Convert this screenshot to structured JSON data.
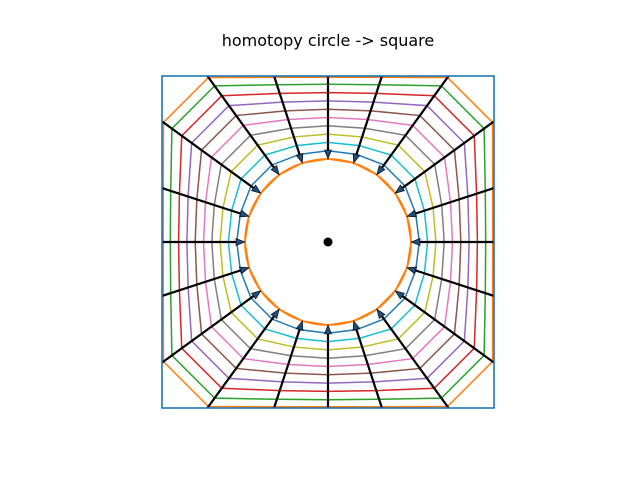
{
  "chart_data": {
    "type": "line",
    "title": "homotopy circle -> square",
    "xlabel": "",
    "ylabel": "",
    "xlim": [
      -1.0,
      1.0
    ],
    "ylim": [
      -1.0,
      1.0
    ],
    "axes_visible": false,
    "aspect": "equal",
    "grid": false,
    "center_point": {
      "x": 0,
      "y": 0
    },
    "circle_radius": 0.5,
    "interpolation_t": [
      0.0,
      0.1,
      0.2,
      0.3,
      0.4,
      0.5,
      0.6,
      0.7,
      0.8,
      0.9,
      1.0
    ],
    "series_colors": [
      "#ff7f0e",
      "#1f77b4",
      "#17becf",
      "#bcbd22",
      "#7f7f7f",
      "#e377c2",
      "#8c564b",
      "#9467bd",
      "#d62728",
      "#2ca02c",
      "#ff7f0e"
    ],
    "square_color": "#1f77b4",
    "ray_color": "#000000",
    "arrow_color": "#1f4e79",
    "ray_count": 20,
    "ray_angles_deg": [
      0,
      18,
      36,
      54,
      72,
      90,
      108,
      126,
      144,
      162,
      180,
      198,
      216,
      234,
      252,
      270,
      288,
      306,
      324,
      342
    ]
  }
}
